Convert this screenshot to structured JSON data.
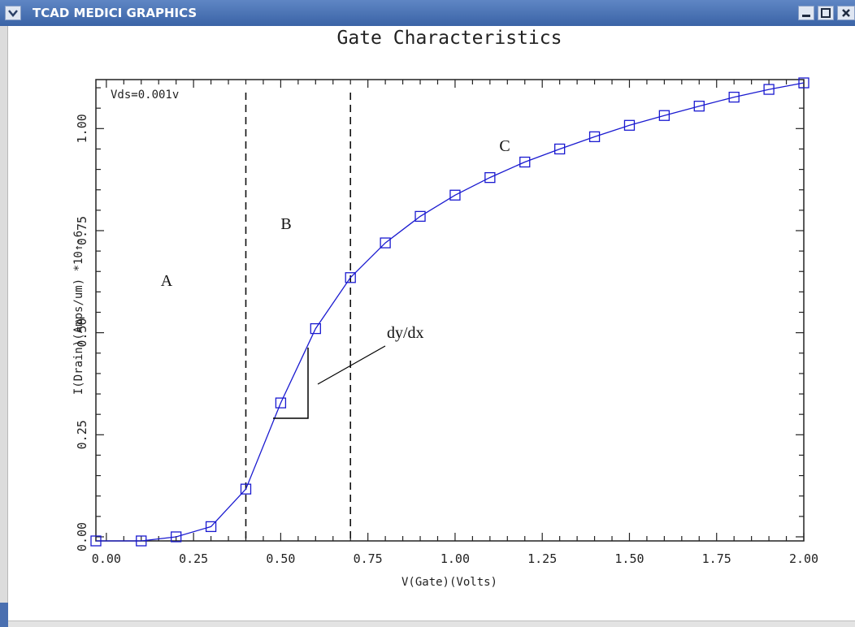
{
  "window": {
    "title": "TCAD MEDICI GRAPHICS",
    "menu_icon": "chevron-down-icon",
    "minimize_icon": "minimize-icon",
    "maximize_icon": "maximize-icon",
    "close_icon": "close-icon"
  },
  "chart_data": {
    "type": "line",
    "title": "Gate Characteristics",
    "xlabel": "V(Gate)(Volts)",
    "ylabel": "I(Drain)(Amps/um) *10↑-6",
    "xlim": [
      -0.03,
      2.0
    ],
    "ylim": [
      -0.01,
      1.12
    ],
    "x_ticks": [
      "0.00",
      "0.25",
      "0.50",
      "0.75",
      "1.00",
      "1.25",
      "1.50",
      "1.75",
      "2.00"
    ],
    "x_tick_values": [
      0,
      0.25,
      0.5,
      0.75,
      1.0,
      1.25,
      1.5,
      1.75,
      2.0
    ],
    "y_ticks": [
      "0.00",
      "0.25",
      "0.50",
      "0.75",
      "1.00"
    ],
    "y_tick_values": [
      0,
      0.25,
      0.5,
      0.75,
      1.0
    ],
    "grid": false,
    "line_color": "#1a1ad0",
    "series": [
      {
        "marker": "square",
        "x": [
          -0.03,
          0.1,
          0.2,
          0.3,
          0.4,
          0.5,
          0.6,
          0.7,
          0.8,
          0.9,
          1.0,
          1.1,
          1.2,
          1.3,
          1.4,
          1.5,
          1.6,
          1.7,
          1.8,
          1.9,
          2.0
        ],
        "y": [
          -0.01,
          -0.01,
          0.0,
          0.025,
          0.117,
          0.328,
          0.51,
          0.635,
          0.72,
          0.785,
          0.837,
          0.88,
          0.918,
          0.95,
          0.98,
          1.008,
          1.032,
          1.055,
          1.077,
          1.096,
          1.112
        ]
      }
    ],
    "vlines": [
      0.4,
      0.7
    ],
    "annotations": {
      "condition": "Vds=0.001v",
      "region_a": "A",
      "region_b": "B",
      "region_c": "C",
      "slope_label": "dy/dx"
    }
  }
}
